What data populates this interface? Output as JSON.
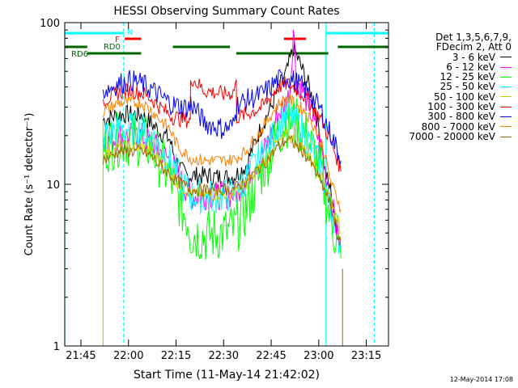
{
  "chart_data": {
    "type": "line",
    "title": "HESSI Observing Summary Count Rates",
    "xlabel": "Start Time (11-May-14 21:42:02)",
    "ylabel": "Count Rate (s⁻¹ detector⁻¹)",
    "x_ticks": [
      "21:45",
      "22:00",
      "22:15",
      "22:30",
      "22:45",
      "23:00",
      "23:15"
    ],
    "y_ticks": [
      "1",
      "10",
      "100"
    ],
    "xlim_minutes": [
      -2.1,
      100.0
    ],
    "ylim": [
      1,
      100
    ],
    "y_scale": "log",
    "legend": {
      "header": [
        "Det 1,3,5,6,7,9,",
        "FDecim 2, Att 0"
      ],
      "entries": [
        {
          "label": "3 - 6 keV",
          "color": "#000000"
        },
        {
          "label": "6 - 12 keV",
          "color": "#ff00ff"
        },
        {
          "label": "12 - 25 keV",
          "color": "#00ff00"
        },
        {
          "label": "25 - 50 keV",
          "color": "#00ffff"
        },
        {
          "label": "50 - 100 keV",
          "color": "#cccc00"
        },
        {
          "label": "100 - 300 keV",
          "color": "#ff0000"
        },
        {
          "label": "300 - 800 keV",
          "color": "#0000ff"
        },
        {
          "label": "800 - 7000 keV",
          "color": "#ff8000"
        },
        {
          "label": "7000 - 20000 keV",
          "color": "#996600"
        }
      ]
    },
    "series": [
      {
        "name": "3 - 6 keV",
        "color": "#000000",
        "x": [
          10,
          15,
          19,
          22,
          25,
          28,
          31,
          32,
          33,
          35,
          37,
          37.5,
          42,
          48,
          51,
          52,
          55,
          60,
          63,
          65,
          68,
          70,
          73,
          75,
          77,
          79,
          80,
          81,
          82,
          83,
          84,
          85
        ],
        "y": [
          25,
          27,
          27,
          27,
          24,
          21,
          19,
          16,
          14,
          12,
          11,
          11.3,
          11.3,
          11,
          11.2,
          11.5,
          13,
          23,
          30,
          38,
          50,
          70,
          50,
          40,
          28,
          18,
          12,
          10,
          9,
          6,
          5,
          4
        ]
      },
      {
        "name": "6 - 12 keV",
        "color": "#ff00ff",
        "x": [
          10,
          15,
          19,
          22,
          25,
          28,
          31,
          33,
          35,
          37,
          37.5,
          42,
          48,
          51,
          52,
          55,
          60,
          63,
          65,
          68,
          69,
          70,
          71,
          73,
          75,
          77,
          79,
          80,
          81,
          82,
          83,
          84,
          85
        ],
        "y": [
          18,
          20,
          20,
          20,
          18,
          16,
          14,
          12,
          10,
          9,
          8.5,
          8.5,
          8.5,
          8.7,
          9,
          11,
          15,
          20,
          27,
          32,
          40,
          92,
          45,
          38,
          30,
          22,
          16,
          12,
          10,
          8,
          6,
          5,
          4
        ]
      },
      {
        "name": "12 - 25 keV",
        "color": "#00ff00",
        "x": [
          10,
          15,
          19,
          22,
          25,
          28,
          31,
          33,
          35,
          37,
          37.5,
          42,
          48,
          51,
          52,
          55,
          60,
          63,
          65,
          68,
          70,
          73,
          75,
          77,
          79,
          80,
          81,
          82,
          83,
          84,
          85
        ],
        "y": [
          17,
          19,
          19,
          19,
          17,
          14,
          11,
          9,
          7,
          6,
          5,
          4.8,
          5,
          5.2,
          5.5,
          7,
          12,
          16,
          20,
          25,
          24,
          22,
          18,
          15,
          11,
          9,
          7,
          6,
          5,
          4,
          3.5
        ]
      },
      {
        "name": "25 - 50 keV",
        "color": "#00ffff",
        "x": [
          10,
          15,
          19,
          22,
          25,
          28,
          31,
          33,
          35,
          37,
          37.5,
          42,
          48,
          51,
          52,
          55,
          60,
          63,
          65,
          68,
          70,
          73,
          75,
          77,
          79,
          80,
          81,
          82,
          83,
          84,
          85
        ],
        "y": [
          20,
          22,
          22,
          22,
          20,
          17,
          14,
          12,
          10,
          9,
          8.5,
          8.3,
          8.5,
          8.7,
          9,
          11,
          15,
          19,
          23,
          27,
          25,
          22,
          18,
          15,
          12,
          10,
          8,
          7,
          6,
          5,
          4
        ]
      },
      {
        "name": "50 - 100 keV",
        "color": "#cccc00",
        "x": [
          10,
          15,
          19,
          22,
          25,
          28,
          31,
          33,
          35,
          37,
          37.5,
          42,
          48,
          51,
          52,
          55,
          60,
          63,
          65,
          68,
          70,
          73,
          75,
          77,
          79,
          80,
          81,
          82,
          83,
          84,
          85
        ],
        "y": [
          15,
          17,
          17,
          17,
          16,
          14,
          12,
          10.5,
          9.5,
          9,
          8.8,
          8.6,
          8.7,
          8.8,
          9,
          10,
          13,
          16,
          18,
          20,
          19,
          17,
          15,
          13,
          11,
          10,
          9,
          8,
          7,
          6,
          5
        ]
      },
      {
        "name": "100 - 300 keV",
        "color": "#ff0000",
        "x": [
          10,
          15,
          19,
          22,
          25,
          28,
          31,
          32,
          33,
          35,
          37,
          37.5,
          37.6,
          42,
          48,
          51,
          52,
          52.1,
          55,
          60,
          63,
          65,
          68,
          70,
          73,
          75,
          77,
          79,
          80,
          81,
          82,
          83,
          84,
          85
        ],
        "y": [
          33,
          37,
          38,
          37,
          34,
          30,
          27,
          26,
          26,
          25,
          25,
          25,
          46,
          38,
          36,
          37,
          44,
          26,
          27,
          30,
          35,
          40,
          42,
          40,
          36,
          32,
          28,
          25,
          22,
          20,
          18,
          16,
          14,
          12
        ]
      },
      {
        "name": "300 - 800 keV",
        "color": "#0000ff",
        "x": [
          10,
          15,
          19,
          22,
          25,
          28,
          31,
          32,
          33,
          35,
          37,
          37.5,
          37.6,
          42,
          48,
          51,
          52,
          52.1,
          55,
          60,
          63,
          65,
          68,
          70,
          73,
          75,
          77,
          79,
          80,
          81,
          82,
          83,
          84,
          85
        ],
        "y": [
          38,
          42,
          44,
          42,
          39,
          35,
          32,
          31,
          31,
          30,
          30,
          30,
          32,
          24,
          22,
          23,
          28,
          31,
          33,
          36,
          40,
          44,
          46,
          44,
          40,
          36,
          32,
          28,
          25,
          22,
          20,
          18,
          16,
          14
        ]
      },
      {
        "name": "800 - 7000 keV",
        "color": "#ff8000",
        "x": [
          10,
          15,
          19,
          22,
          25,
          28,
          31,
          32,
          33,
          35,
          37,
          37.5,
          42,
          48,
          51,
          52,
          55,
          60,
          63,
          65,
          68,
          70,
          73,
          75,
          77,
          79,
          80,
          81,
          82,
          83,
          84,
          85
        ],
        "y": [
          28,
          32,
          32,
          32,
          29,
          25,
          22,
          20,
          18,
          16,
          15,
          14.5,
          14,
          14,
          14.2,
          14.5,
          16,
          22,
          27,
          31,
          34,
          32,
          29,
          26,
          22,
          18,
          15,
          12,
          10,
          9,
          8,
          7
        ]
      },
      {
        "name": "7000 - 20000 keV",
        "color": "#996600",
        "x": [
          10,
          15,
          19,
          22,
          25,
          28,
          31,
          33,
          35,
          37,
          37.5,
          42,
          48,
          51,
          52,
          55,
          60,
          63,
          65,
          68,
          70,
          73,
          75,
          77,
          79,
          80,
          81,
          82,
          83,
          84,
          85
        ],
        "y": [
          14,
          16,
          16,
          16,
          15,
          13,
          11.5,
          10.5,
          10,
          9.5,
          9.3,
          9.2,
          9.3,
          9.4,
          9.6,
          10.5,
          13,
          15,
          17,
          19,
          18,
          16,
          14,
          12,
          10,
          9,
          8,
          7,
          6,
          5,
          4.5
        ]
      }
    ],
    "status_bars": [
      {
        "label": "N",
        "color": "#00ffff",
        "row": 1,
        "segments": [
          [
            -2.1,
            16.5
          ],
          [
            80.5,
            100.0
          ]
        ]
      },
      {
        "label": "F",
        "color": "#ff0000",
        "row": 2,
        "segments": [
          [
            16.8,
            22
          ],
          [
            67,
            74
          ]
        ]
      },
      {
        "label": "RD0",
        "color": "#006600",
        "row": 3,
        "segments": [
          [
            -2.1,
            5.0
          ],
          [
            32,
            50
          ],
          [
            84,
            100.0
          ]
        ]
      },
      {
        "label": "RD6",
        "color": "#006600",
        "row": 4,
        "segments": [
          [
            5.0,
            22
          ],
          [
            52,
            81
          ]
        ]
      }
    ],
    "vlines": [
      {
        "x": -2.1,
        "color": "#00ffff",
        "style": "solid"
      },
      {
        "x": 16.5,
        "color": "#00ffff",
        "style": "dashed"
      },
      {
        "x": 80.3,
        "color": "#00ffff",
        "style": "solid"
      },
      {
        "x": 95.5,
        "color": "#00ffff",
        "style": "dashed"
      }
    ]
  },
  "footer": {
    "date": "12-May-2014 17:08"
  }
}
